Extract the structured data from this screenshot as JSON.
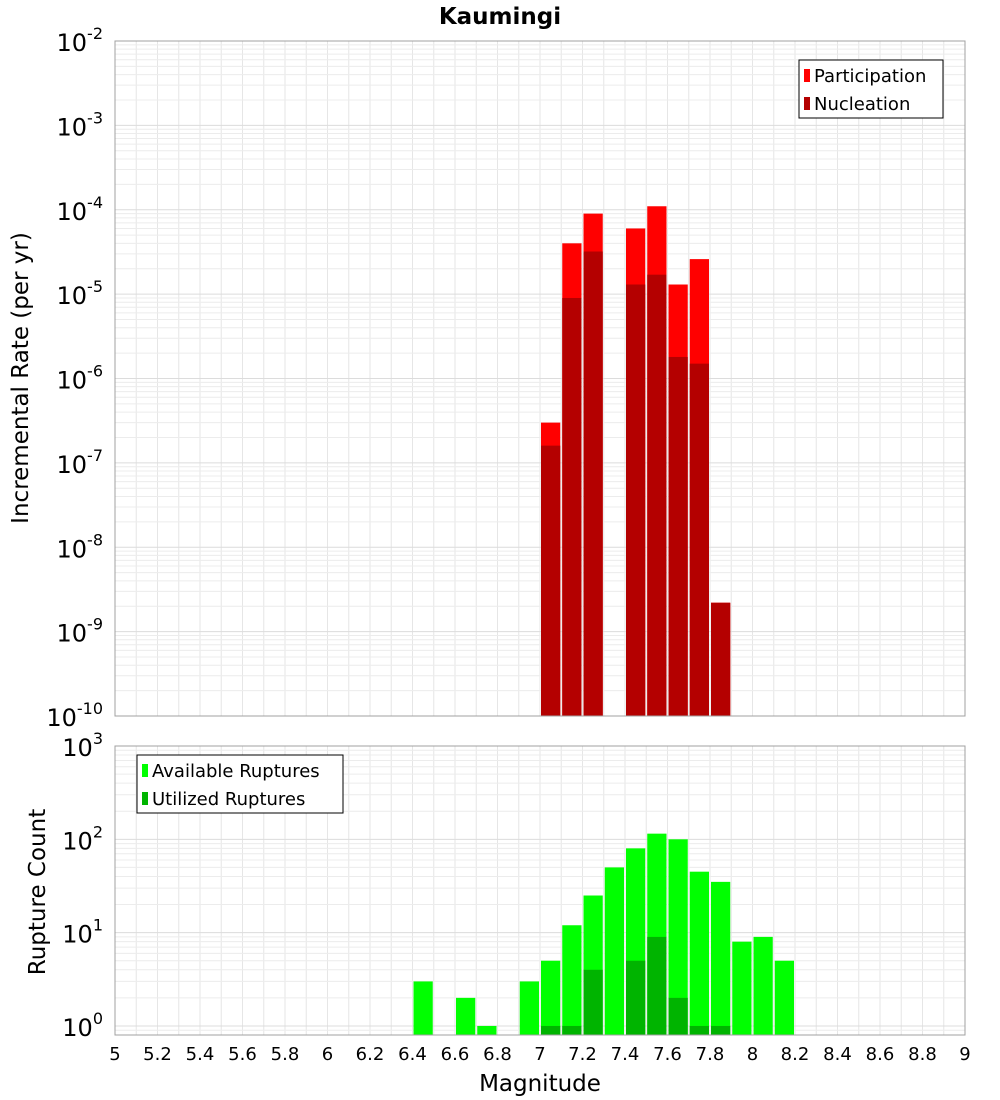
{
  "title": "Kaumingi",
  "xlabel": "Magnitude",
  "x_ticks": [
    "5",
    "5.2",
    "5.4",
    "5.6",
    "5.8",
    "6",
    "6.2",
    "6.4",
    "6.6",
    "6.8",
    "7",
    "7.2",
    "7.4",
    "7.6",
    "7.8",
    "8",
    "8.2",
    "8.4",
    "8.6",
    "8.8",
    "9"
  ],
  "chart_data": [
    {
      "type": "bar",
      "panel": "top",
      "ylabel": "Incremental Rate (per yr)",
      "xlim": [
        5,
        9
      ],
      "ylim": [
        1e-10,
        0.01
      ],
      "yscale": "log",
      "grid": true,
      "legend_position": "top-right",
      "y_ticks": [
        {
          "base": "10",
          "exp": "-10",
          "value": 1e-10
        },
        {
          "base": "10",
          "exp": "-9",
          "value": 1e-09
        },
        {
          "base": "10",
          "exp": "-8",
          "value": 1e-08
        },
        {
          "base": "10",
          "exp": "-7",
          "value": 1e-07
        },
        {
          "base": "10",
          "exp": "-6",
          "value": 1e-06
        },
        {
          "base": "10",
          "exp": "-5",
          "value": 1e-05
        },
        {
          "base": "10",
          "exp": "-4",
          "value": 0.0001
        },
        {
          "base": "10",
          "exp": "-3",
          "value": 0.001
        },
        {
          "base": "10",
          "exp": "-2",
          "value": 0.01
        }
      ],
      "x": [
        7.05,
        7.15,
        7.25,
        7.45,
        7.55,
        7.65,
        7.75,
        7.85
      ],
      "series": [
        {
          "name": "Participation",
          "color": "#ff0000",
          "values": [
            3e-07,
            4e-05,
            9e-05,
            6e-05,
            0.00011,
            1.3e-05,
            2.6e-05,
            2.2e-09
          ]
        },
        {
          "name": "Nucleation",
          "color": "#b40000",
          "values": [
            1.6e-07,
            9e-06,
            3.2e-05,
            1.3e-05,
            1.7e-05,
            1.8e-06,
            1.5e-06,
            2.2e-09
          ]
        }
      ]
    },
    {
      "type": "bar",
      "panel": "bottom",
      "ylabel": "Rupture Count",
      "xlim": [
        5,
        9
      ],
      "ylim": [
        0.8,
        1000
      ],
      "yscale": "log",
      "grid": true,
      "legend_position": "top-left",
      "y_ticks": [
        {
          "base": "10",
          "exp": "0",
          "value": 1
        },
        {
          "base": "10",
          "exp": "1",
          "value": 10
        },
        {
          "base": "10",
          "exp": "2",
          "value": 100
        },
        {
          "base": "10",
          "exp": "3",
          "value": 1000
        }
      ],
      "x": [
        6.45,
        6.65,
        6.75,
        6.95,
        7.05,
        7.15,
        7.25,
        7.35,
        7.45,
        7.55,
        7.65,
        7.75,
        7.85,
        7.95,
        8.05,
        8.15
      ],
      "series": [
        {
          "name": "Available Ruptures",
          "color": "#00ff00",
          "values": [
            3,
            2,
            1,
            3,
            5,
            12,
            25,
            50,
            80,
            115,
            100,
            45,
            35,
            8,
            9,
            5
          ]
        },
        {
          "name": "Utilized Ruptures",
          "color": "#00b400",
          "values": [
            null,
            null,
            null,
            null,
            1,
            1,
            4,
            null,
            5,
            9,
            2,
            1,
            1,
            null,
            null,
            null
          ]
        }
      ]
    }
  ]
}
